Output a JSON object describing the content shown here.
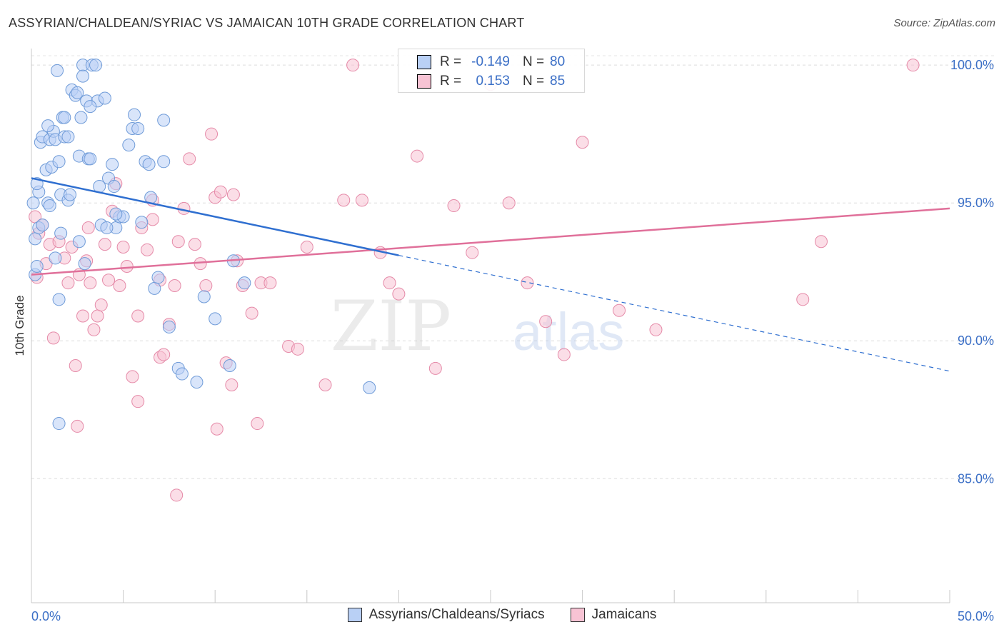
{
  "header": {
    "title": "ASSYRIAN/CHALDEAN/SYRIAC VS JAMAICAN 10TH GRADE CORRELATION CHART",
    "source": "Source: ZipAtlas.com"
  },
  "stats": {
    "blue": {
      "r_label": "R =",
      "r_value": "-0.149",
      "n_label": "N =",
      "n_value": "80"
    },
    "pink": {
      "r_label": "R =",
      "r_value": "0.153",
      "n_label": "N =",
      "n_value": "85"
    }
  },
  "watermark": {
    "zip": "ZIP",
    "atlas": "atlas"
  },
  "colors": {
    "blue_fill": "#b9d0f5",
    "blue_stroke": "#6f9bd8",
    "blue_line": "#2f6fd0",
    "pink_fill": "#f7c3d4",
    "pink_stroke": "#e58aa8",
    "pink_line": "#e0709a",
    "tick_label": "#3b6fc6"
  },
  "chart_data": {
    "type": "scatter",
    "title": "ASSYRIAN/CHALDEAN/SYRIAC VS JAMAICAN 10TH GRADE CORRELATION CHART",
    "xlabel": "",
    "ylabel": "10th Grade",
    "xlim": [
      0,
      50
    ],
    "ylim": [
      80.5,
      100.6
    ],
    "x_tick_labels": [
      "0.0%",
      "50.0%"
    ],
    "y_ticks": [
      85,
      90,
      95,
      100
    ],
    "y_tick_labels": [
      "85.0%",
      "90.0%",
      "95.0%",
      "100.0%"
    ],
    "grid": true,
    "legend_position": "bottom",
    "series": [
      {
        "name": "Assyrians/Chaldeans/Syriacs",
        "color": "#6f9bd8",
        "x": [
          0.2,
          0.3,
          0.2,
          0.1,
          0.4,
          0.5,
          0.6,
          0.4,
          0.8,
          0.9,
          1.0,
          1.1,
          1.2,
          0.9,
          1.3,
          1.4,
          1.5,
          1.6,
          1.7,
          1.8,
          2.0,
          2.1,
          2.2,
          2.4,
          2.5,
          2.6,
          2.7,
          2.8,
          3.0,
          3.1,
          3.2,
          3.3,
          3.5,
          3.6,
          3.7,
          3.8,
          4.0,
          4.2,
          4.4,
          4.5,
          4.6,
          4.8,
          5.0,
          5.3,
          5.5,
          5.6,
          5.8,
          6.0,
          6.2,
          6.4,
          6.5,
          6.7,
          6.9,
          7.2,
          7.5,
          8.0,
          8.2,
          9.0,
          9.4,
          10.0,
          10.8,
          11.0,
          11.6,
          1.5,
          1.0,
          1.6,
          0.3,
          1.3,
          2.6,
          0.6,
          2.9,
          4.1,
          3.2,
          4.6,
          1.5,
          18.4,
          7.2,
          2.8,
          1.8,
          2.0
        ],
        "y": [
          92.4,
          92.7,
          93.7,
          95.0,
          95.4,
          97.2,
          97.4,
          94.1,
          96.2,
          95.0,
          97.3,
          96.3,
          97.6,
          97.8,
          97.3,
          99.8,
          96.5,
          95.3,
          98.1,
          97.4,
          95.1,
          95.3,
          99.1,
          98.9,
          99.0,
          96.7,
          98.1,
          100.0,
          98.7,
          96.6,
          96.6,
          100.0,
          100.0,
          98.7,
          95.6,
          94.2,
          98.8,
          95.9,
          96.4,
          95.6,
          94.1,
          94.5,
          94.5,
          97.1,
          97.7,
          98.2,
          97.7,
          94.3,
          96.5,
          96.4,
          95.2,
          91.9,
          92.3,
          98.0,
          90.5,
          89.0,
          88.8,
          88.5,
          91.6,
          90.8,
          89.1,
          92.9,
          92.1,
          91.5,
          94.9,
          93.9,
          95.7,
          93.0,
          93.6,
          94.2,
          92.8,
          94.1,
          98.5,
          94.6,
          87.0,
          88.3,
          96.5,
          99.6,
          98.1,
          97.4
        ]
      },
      {
        "name": "Jamaicans",
        "color": "#e58aa8",
        "x": [
          0.2,
          0.3,
          0.4,
          0.6,
          0.8,
          1.0,
          1.2,
          1.5,
          1.8,
          2.0,
          2.2,
          2.4,
          2.6,
          2.8,
          3.0,
          3.2,
          3.4,
          3.6,
          3.8,
          4.0,
          4.2,
          4.4,
          4.6,
          4.8,
          5.0,
          5.2,
          5.5,
          5.8,
          6.0,
          6.3,
          6.6,
          7.0,
          7.2,
          7.5,
          7.8,
          8.0,
          8.3,
          8.6,
          8.9,
          9.2,
          9.5,
          9.8,
          10.0,
          10.3,
          10.6,
          10.9,
          11.2,
          11.5,
          12.0,
          12.5,
          13.0,
          14.0,
          14.5,
          15.0,
          16.0,
          17.0,
          17.5,
          18.0,
          19.0,
          19.5,
          20.0,
          21.0,
          22.0,
          23.0,
          24.0,
          25.0,
          26.0,
          27.0,
          28.0,
          29.0,
          30.0,
          32.0,
          34.0,
          42.0,
          43.0,
          48.0,
          3.1,
          5.8,
          6.6,
          7.9,
          10.1,
          12.3,
          2.5,
          7.0,
          11.0
        ],
        "y": [
          94.5,
          92.3,
          93.9,
          94.2,
          92.8,
          93.5,
          90.1,
          93.6,
          93.0,
          92.1,
          93.4,
          89.1,
          92.4,
          90.9,
          92.9,
          92.1,
          90.4,
          90.9,
          91.3,
          93.5,
          92.2,
          94.7,
          95.7,
          92.0,
          93.4,
          92.7,
          88.7,
          87.8,
          94.1,
          93.3,
          94.4,
          89.4,
          89.5,
          90.6,
          92.0,
          93.6,
          94.8,
          96.6,
          93.5,
          92.8,
          92.0,
          97.5,
          95.2,
          95.4,
          89.2,
          88.4,
          92.9,
          92.0,
          91.0,
          92.1,
          92.1,
          89.8,
          89.7,
          93.4,
          88.4,
          95.1,
          100.0,
          95.1,
          93.2,
          92.1,
          91.7,
          96.7,
          89.0,
          94.9,
          93.2,
          99.3,
          95.0,
          92.1,
          90.7,
          89.5,
          97.2,
          91.1,
          90.4,
          91.5,
          93.6,
          100.0,
          94.1,
          90.9,
          95.1,
          84.4,
          86.8,
          87.0,
          86.9,
          92.2,
          95.3
        ]
      }
    ],
    "trend_lines": [
      {
        "series": "Assyrians/Chaldeans/Syriacs",
        "solid": [
          [
            0,
            95.9
          ],
          [
            20,
            93.1
          ]
        ],
        "dashed": [
          [
            20,
            93.1
          ],
          [
            50,
            88.9
          ]
        ]
      },
      {
        "series": "Jamaicans",
        "solid": [
          [
            0,
            92.4
          ],
          [
            50,
            94.8
          ]
        ]
      }
    ]
  }
}
